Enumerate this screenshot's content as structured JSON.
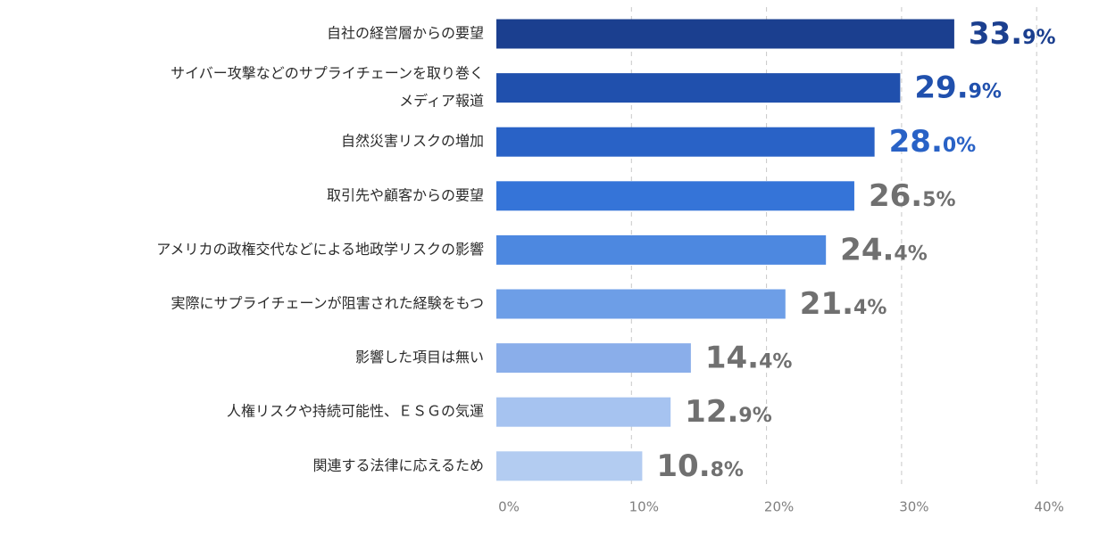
{
  "chart_data": {
    "type": "bar",
    "orientation": "horizontal",
    "categories": [
      [
        "自社の経営層からの要望"
      ],
      [
        "サイバー攻撃などのサプライチェーンを取り巻く",
        "メディア報道"
      ],
      [
        "自然災害リスクの増加"
      ],
      [
        "取引先や顧客からの要望"
      ],
      [
        "アメリカの政権交代などによる地政学リスクの影響"
      ],
      [
        "実際にサプライチェーンが阻害された経験をもつ"
      ],
      [
        "影響した項目は無い"
      ],
      [
        "人権リスクや持続可能性、ＥＳＧの気運"
      ],
      [
        "関連する法律に応えるため"
      ]
    ],
    "values": [
      33.9,
      29.9,
      28.0,
      26.5,
      24.4,
      21.4,
      14.4,
      12.9,
      10.8
    ],
    "value_labels": [
      {
        "int": "33.",
        "dec": "9%"
      },
      {
        "int": "29.",
        "dec": "9%"
      },
      {
        "int": "28.",
        "dec": "0%"
      },
      {
        "int": "26.",
        "dec": "5%"
      },
      {
        "int": "24.",
        "dec": "4%"
      },
      {
        "int": "21.",
        "dec": "4%"
      },
      {
        "int": "14.",
        "dec": "4%"
      },
      {
        "int": "12.",
        "dec": "9%"
      },
      {
        "int": "10.",
        "dec": "8%"
      }
    ],
    "bar_colors": [
      "#1b3f8f",
      "#2050ad",
      "#2962c6",
      "#3574d8",
      "#4d88e0",
      "#6d9ee7",
      "#8aaeea",
      "#a6c3f0",
      "#b3ccf1"
    ],
    "label_colors": [
      "#1b3f8f",
      "#2050ad",
      "#2962c6",
      "#707070",
      "#707070",
      "#707070",
      "#707070",
      "#707070",
      "#707070"
    ],
    "x_ticks": [
      0,
      10,
      20,
      30,
      40
    ],
    "x_tick_labels": [
      "0%",
      "10%",
      "20%",
      "30%",
      "40%"
    ],
    "xlim": [
      0,
      40
    ],
    "grid": true,
    "title": "",
    "xlabel": "",
    "ylabel": ""
  }
}
